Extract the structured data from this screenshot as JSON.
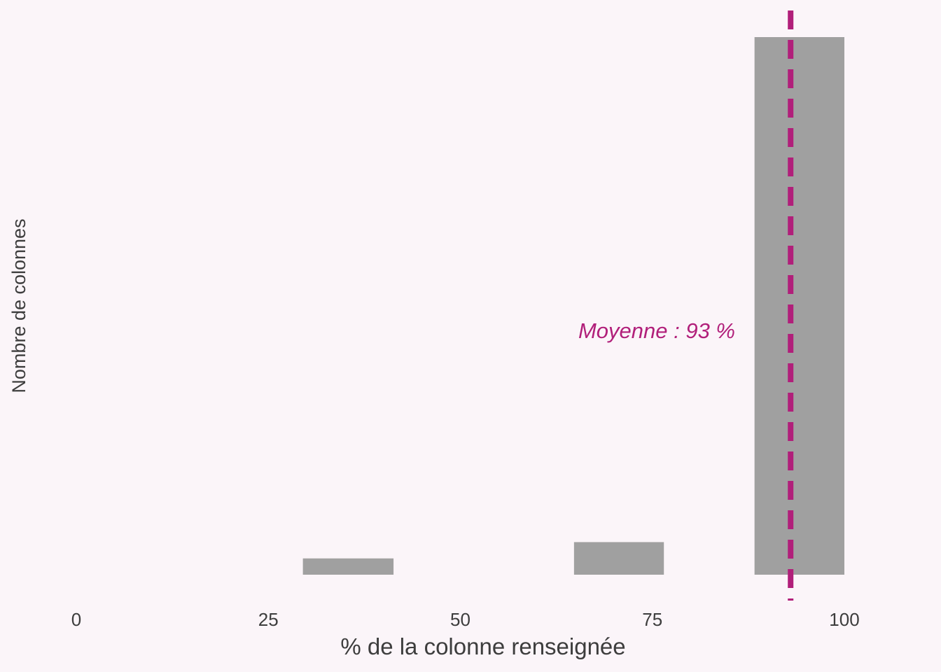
{
  "chart_data": {
    "type": "bar",
    "xlabel": "% de la colonne renseignée",
    "ylabel": "Nombre de colonnes",
    "xlim": [
      0,
      100
    ],
    "x_ticks": [
      "0",
      "25",
      "50",
      "75",
      "100"
    ],
    "y_ticks_shown": false,
    "grid": false,
    "bins": [
      {
        "x_start": 29.5,
        "x_end": 41.3,
        "count": 1
      },
      {
        "x_start": 64.8,
        "x_end": 76.5,
        "count": 2
      },
      {
        "x_start": 88.3,
        "x_end": 100.0,
        "count": 33
      }
    ],
    "mean": {
      "value": 93,
      "label": "Moyenne : 93 %"
    },
    "colors": {
      "background": "#fbf5f9",
      "bar": "#a0a0a0",
      "mean_line": "#b11f7a",
      "text": "#3d3d3d"
    }
  }
}
